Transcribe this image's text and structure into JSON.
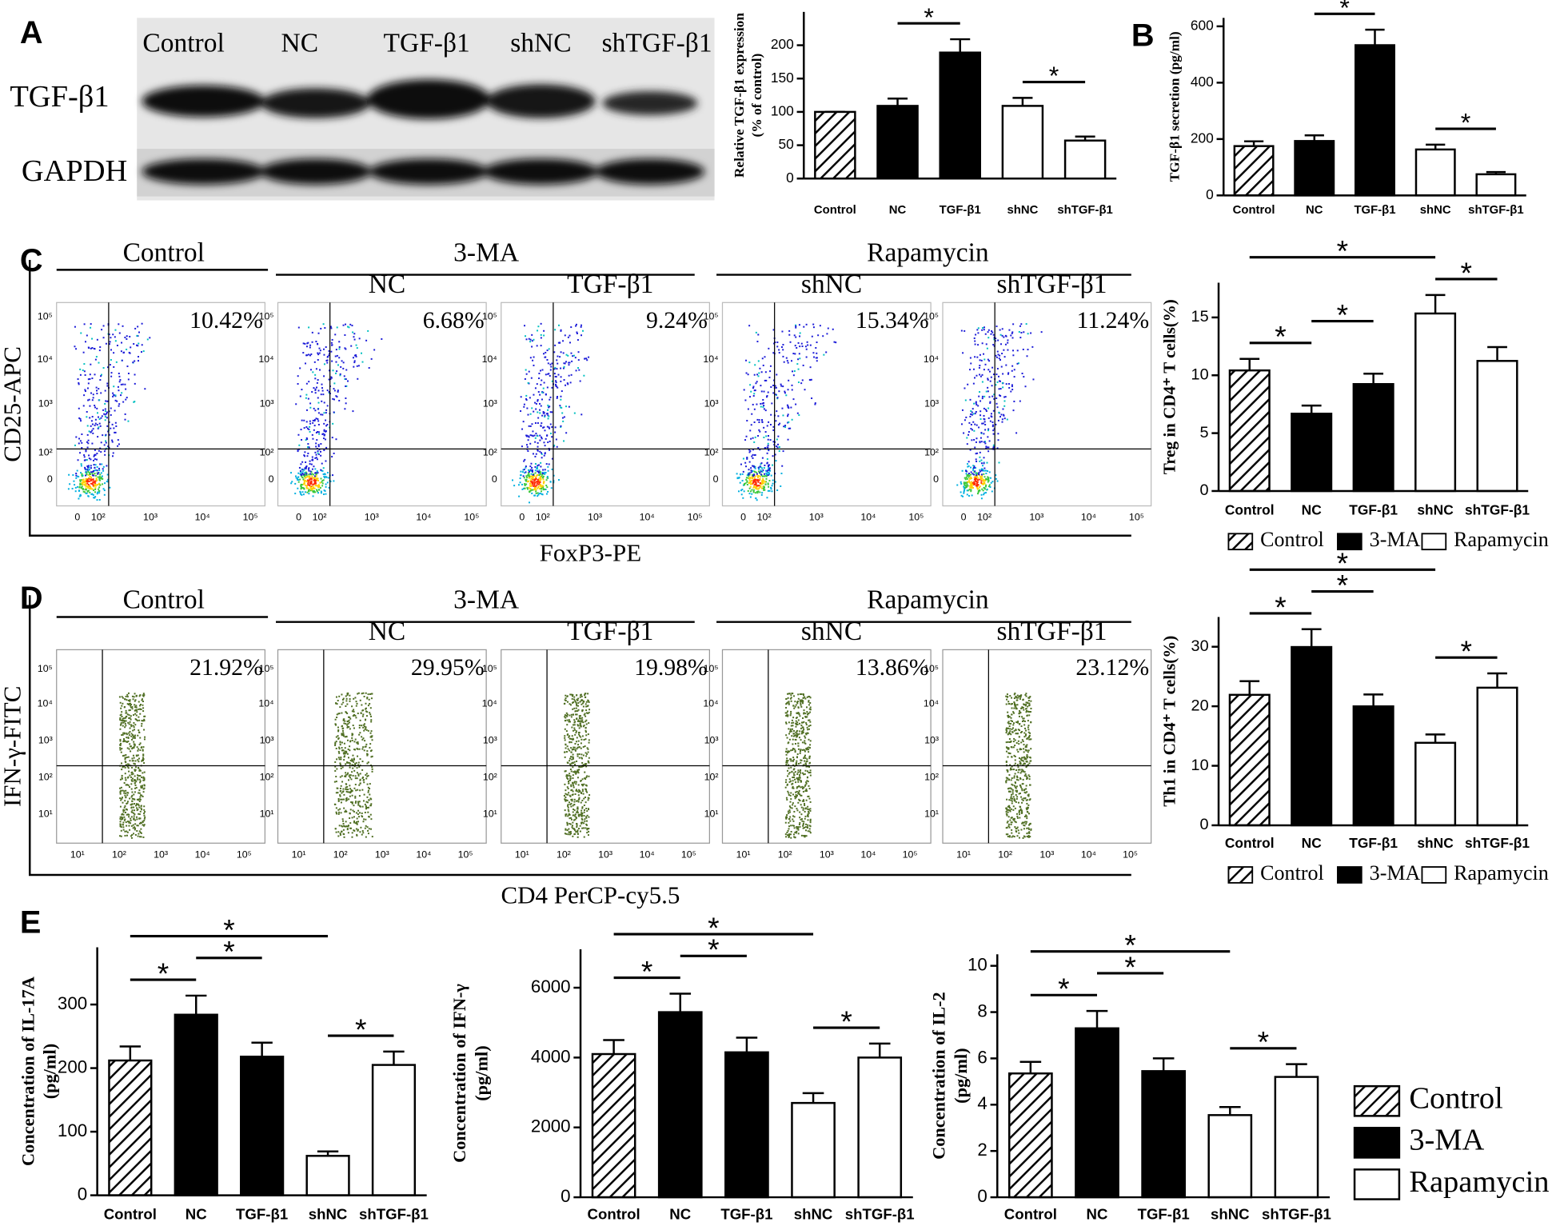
{
  "panel_labels": [
    "A",
    "B",
    "C",
    "D",
    "E"
  ],
  "blot": {
    "lanes": [
      "Control",
      "NC",
      "TGF-β1",
      "shNC",
      "shTGF-β1"
    ],
    "rows": [
      "TGF-β1",
      "GAPDH"
    ]
  },
  "flow_c": {
    "groups": [
      "Control",
      "3-MA",
      "Rapamycin"
    ],
    "samples": [
      "NC",
      "TGF-β1",
      "shNC",
      "shTGF-β1"
    ],
    "percents": [
      "10.42%",
      "6.68%",
      "9.24%",
      "15.34%",
      "11.24%"
    ],
    "ylabel": "CD25-APC",
    "xlabel": "FoxP3-PE",
    "yticks": [
      "10⁵",
      "10⁴",
      "10³",
      "10²",
      "0"
    ],
    "xticks": [
      "0",
      "10²",
      "10³",
      "10⁴",
      "10⁵"
    ]
  },
  "flow_d": {
    "groups": [
      "Control",
      "3-MA",
      "Rapamycin"
    ],
    "samples": [
      "NC",
      "TGF-β1",
      "shNC",
      "shTGF-β1"
    ],
    "percents": [
      "21.92%",
      "29.95%",
      "19.98%",
      "13.86%",
      "23.12%"
    ],
    "ylabel": "IFN-γ-FITC",
    "xlabel": "CD4 PerCP-cy5.5",
    "yticks": [
      "10⁵",
      "10⁴",
      "10³",
      "10²",
      "10¹"
    ],
    "xticks": [
      "10¹",
      "10²",
      "10³",
      "10⁴",
      "10⁵"
    ]
  },
  "chart_data": [
    {
      "type": "bar",
      "ylabel": [
        "Relative TGF-β1 expression",
        "(% of control)"
      ],
      "categories": [
        "Control",
        "NC",
        "TGF-β1",
        "shNC",
        "shTGF-β1"
      ],
      "values": [
        100,
        109,
        189,
        109,
        57
      ],
      "errors": [
        0,
        11,
        20,
        12,
        6
      ],
      "fills": [
        "hatch",
        "#000000",
        "#000000",
        "#ffffff",
        "#ffffff"
      ],
      "ylim": [
        0,
        250
      ],
      "yticks": [
        0,
        50,
        100,
        150,
        200
      ],
      "significance": [
        {
          "pair": [
            1,
            2
          ],
          "label": "*"
        },
        {
          "pair": [
            3,
            4
          ],
          "label": "*"
        }
      ]
    },
    {
      "type": "bar",
      "ylabel": [
        "TGF-β1 secretion (pg/ml)"
      ],
      "categories": [
        "Control",
        "NC",
        "TGF-β1",
        "shNC",
        "shTGF-β1"
      ],
      "values": [
        175,
        193,
        533,
        163,
        75
      ],
      "errors": [
        17,
        20,
        55,
        17,
        8
      ],
      "fills": [
        "hatch",
        "#000000",
        "#000000",
        "#ffffff",
        "#ffffff"
      ],
      "ylim": [
        0,
        630
      ],
      "yticks": [
        0,
        200,
        400,
        600
      ],
      "significance": [
        {
          "pair": [
            1,
            2
          ],
          "label": "*"
        },
        {
          "pair": [
            3,
            4
          ],
          "label": "*"
        }
      ]
    },
    {
      "type": "bar",
      "ylabel": [
        "Treg in CD4⁺ T cells(%)"
      ],
      "categories": [
        "Control",
        "NC",
        "TGF-β1",
        "shNC",
        "shTGF-β1"
      ],
      "values": [
        10.42,
        6.68,
        9.24,
        15.34,
        11.24
      ],
      "errors": [
        1.0,
        0.7,
        0.9,
        1.6,
        1.2
      ],
      "fills": [
        "hatch",
        "#000000",
        "#000000",
        "#ffffff",
        "#ffffff"
      ],
      "ylim": [
        0,
        18
      ],
      "yticks": [
        0,
        5,
        10,
        15
      ],
      "significance": [
        {
          "pair": [
            0,
            1
          ],
          "label": "*"
        },
        {
          "pair": [
            1,
            2
          ],
          "label": "*"
        },
        {
          "pair": [
            3,
            4
          ],
          "label": "*"
        },
        {
          "pair": [
            0,
            3
          ],
          "label": "*"
        }
      ],
      "legend": [
        {
          "name": "Control",
          "fill": "hatch"
        },
        {
          "name": "3-MA",
          "fill": "#000000"
        },
        {
          "name": "Rapamycin",
          "fill": "#ffffff"
        }
      ],
      "legend_position": "bottom"
    },
    {
      "type": "bar",
      "ylabel": [
        "Th1 in CD4⁺ T cells(%)"
      ],
      "categories": [
        "Control",
        "NC",
        "TGF-β1",
        "shNC",
        "shTGF-β1"
      ],
      "values": [
        21.92,
        29.95,
        19.98,
        13.86,
        23.12
      ],
      "errors": [
        2.3,
        3.0,
        2.0,
        1.4,
        2.4
      ],
      "fills": [
        "hatch",
        "#000000",
        "#000000",
        "#ffffff",
        "#ffffff"
      ],
      "ylim": [
        0,
        35
      ],
      "yticks": [
        0,
        10,
        20,
        30
      ],
      "significance": [
        {
          "pair": [
            0,
            1
          ],
          "label": "*"
        },
        {
          "pair": [
            1,
            2
          ],
          "label": "*"
        },
        {
          "pair": [
            3,
            4
          ],
          "label": "*"
        },
        {
          "pair": [
            0,
            3
          ],
          "label": "*"
        }
      ],
      "legend": [
        {
          "name": "Control",
          "fill": "hatch"
        },
        {
          "name": "3-MA",
          "fill": "#000000"
        },
        {
          "name": "Rapamycin",
          "fill": "#ffffff"
        }
      ],
      "legend_position": "bottom"
    },
    {
      "type": "bar",
      "ylabel": [
        "Concentration of IL-17A",
        "(pg/ml)"
      ],
      "categories": [
        "Control",
        "NC",
        "TGF-β1",
        "shNC",
        "shTGF-β1"
      ],
      "values": [
        212,
        284,
        218,
        62,
        205
      ],
      "errors": [
        22,
        30,
        22,
        7,
        21
      ],
      "fills": [
        "hatch",
        "#000000",
        "#000000",
        "#ffffff",
        "#ffffff"
      ],
      "ylim": [
        0,
        390
      ],
      "yticks": [
        0,
        100,
        200,
        300
      ],
      "significance": [
        {
          "pair": [
            0,
            1
          ],
          "label": "*"
        },
        {
          "pair": [
            1,
            2
          ],
          "label": "*"
        },
        {
          "pair": [
            3,
            4
          ],
          "label": "*"
        },
        {
          "pair": [
            0,
            3
          ],
          "label": "*"
        }
      ]
    },
    {
      "type": "bar",
      "ylabel": [
        "Concentration of IFN-γ",
        "(pg/ml)"
      ],
      "categories": [
        "Control",
        "NC",
        "TGF-β1",
        "shNC",
        "shTGF-β1"
      ],
      "values": [
        4100,
        5300,
        4150,
        2700,
        4000
      ],
      "errors": [
        400,
        530,
        420,
        280,
        400
      ],
      "fills": [
        "hatch",
        "#000000",
        "#000000",
        "#ffffff",
        "#ffffff"
      ],
      "ylim": [
        0,
        7100
      ],
      "yticks": [
        0,
        2000,
        4000,
        6000
      ],
      "significance": [
        {
          "pair": [
            0,
            1
          ],
          "label": "*"
        },
        {
          "pair": [
            1,
            2
          ],
          "label": "*"
        },
        {
          "pair": [
            3,
            4
          ],
          "label": "*"
        },
        {
          "pair": [
            0,
            3
          ],
          "label": "*"
        }
      ]
    },
    {
      "type": "bar",
      "ylabel": [
        "Concentration of IL-2",
        "(pg/ml)"
      ],
      "categories": [
        "Control",
        "NC",
        "TGF-β1",
        "shNC",
        "shTGF-β1"
      ],
      "values": [
        5.35,
        7.3,
        5.45,
        3.55,
        5.2
      ],
      "errors": [
        0.5,
        0.75,
        0.55,
        0.35,
        0.55
      ],
      "fills": [
        "hatch",
        "#000000",
        "#000000",
        "#ffffff",
        "#ffffff"
      ],
      "ylim": [
        0,
        10.5
      ],
      "yticks": [
        0,
        2,
        4,
        6,
        8,
        10
      ],
      "significance": [
        {
          "pair": [
            0,
            1
          ],
          "label": "*"
        },
        {
          "pair": [
            1,
            2
          ],
          "label": "*"
        },
        {
          "pair": [
            3,
            4
          ],
          "label": "*"
        },
        {
          "pair": [
            0,
            3
          ],
          "label": "*"
        }
      ],
      "legend": [
        {
          "name": "Control",
          "fill": "hatch"
        },
        {
          "name": "3-MA",
          "fill": "#000000"
        },
        {
          "name": "Rapamycin",
          "fill": "#ffffff"
        }
      ],
      "legend_position": "right"
    }
  ]
}
